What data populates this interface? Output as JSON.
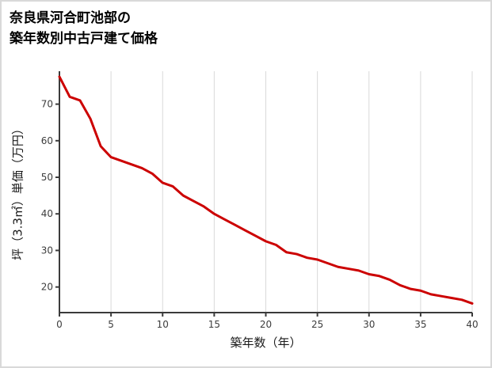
{
  "chart_data": {
    "type": "line",
    "title": "奈良県河合町池部の築年数別中古戸建て価格",
    "title_lines": [
      "奈良県河合町池部の",
      "築年数別中古戸建て価格"
    ],
    "xlabel": "築年数（年）",
    "ylabel": "坪（3.3㎡）単価（万円）",
    "x": [
      0,
      1,
      2,
      3,
      4,
      5,
      6,
      7,
      8,
      9,
      10,
      11,
      12,
      13,
      14,
      15,
      16,
      17,
      18,
      19,
      20,
      21,
      22,
      23,
      24,
      25,
      26,
      27,
      28,
      29,
      30,
      31,
      32,
      33,
      34,
      35,
      36,
      37,
      38,
      39,
      40
    ],
    "values": [
      77.5,
      72,
      71,
      66,
      58.5,
      55.5,
      54.5,
      53.5,
      52.5,
      51,
      48.5,
      47.5,
      45,
      43.5,
      42,
      40,
      38.5,
      37,
      35.5,
      34,
      32.5,
      31.5,
      29.5,
      29,
      28,
      27.5,
      26.5,
      25.5,
      25,
      24.5,
      23.5,
      23,
      22,
      20.5,
      19.5,
      19,
      18,
      17.5,
      17,
      16.5,
      15.5
    ],
    "x_ticks": [
      0,
      5,
      10,
      15,
      20,
      25,
      30,
      35,
      40
    ],
    "y_ticks": [
      20,
      30,
      40,
      50,
      60,
      70
    ],
    "xlim": [
      0,
      40
    ],
    "ylim": [
      13,
      79
    ],
    "grid": "vertical-only",
    "legend": "none",
    "colors": {
      "line": "#cc0000",
      "axis": "#3b3b3b",
      "grid": "#d9d9d9",
      "border": "#d9d9d9",
      "tick_label": "#3d3d3d"
    }
  }
}
